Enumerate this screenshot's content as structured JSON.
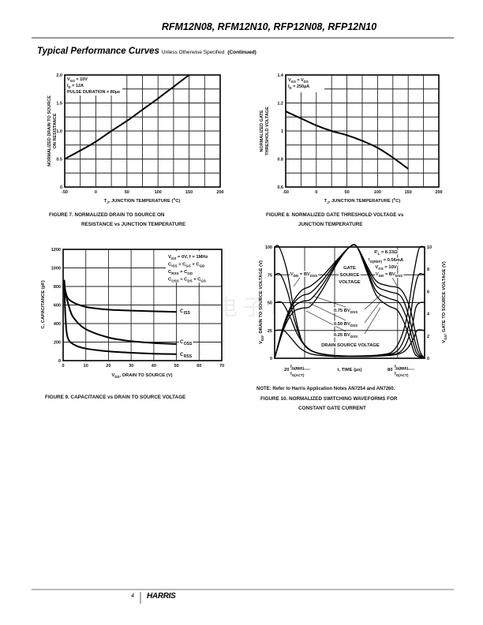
{
  "header": {
    "title": "RFM12N08, RFM12N10, RFP12N08, RFP12N10"
  },
  "section": {
    "title": "Typical Performance Curves",
    "subtitle": "Unless Otherwise Specified",
    "continued": "(Continued)"
  },
  "watermark": "维库电子市场网",
  "chart_data": [
    {
      "type": "line",
      "caption": [
        "FIGURE 7.  NORMALIZED DRAIN TO SOURCE ON",
        "RESISTANCE vs JUNCTION TEMPERATURE"
      ],
      "xlabel": [
        {
          "t": "T"
        },
        {
          "s": "J"
        },
        {
          "t": ", JUNCTION TEMPERATURE ("
        },
        {
          "u": "o"
        },
        {
          "t": "C)"
        }
      ],
      "ylabel": [
        "NORMALIZED DRAIN TO SOURCE",
        "ON RESISTANCE"
      ],
      "xlim": [
        -50,
        200
      ],
      "ylim": [
        0,
        2.0
      ],
      "x_grid": [
        -25,
        0,
        25,
        50,
        75,
        100,
        125,
        150,
        175
      ],
      "y_grid": [
        0.25,
        0.5,
        0.75,
        1.0,
        1.25,
        1.5,
        1.75
      ],
      "x_ticks": [
        -50,
        0,
        50,
        100,
        150,
        200
      ],
      "x_tick_labels": [
        "-50",
        "0",
        "50",
        "100",
        "150",
        "200"
      ],
      "y_ticks": [
        0,
        0.5,
        1.0,
        1.5,
        2.0
      ],
      "y_tick_labels": [
        "0",
        "0.5",
        "1.0",
        "1.5",
        "2.0"
      ],
      "annotations": [
        [
          {
            "t": "V"
          },
          {
            "s": "GS"
          },
          {
            "t": " = 10V"
          }
        ],
        [
          {
            "t": "I"
          },
          {
            "s": "D"
          },
          {
            "t": " = 12A"
          }
        ],
        [
          {
            "t": "PULSE DURATION = 80"
          },
          {
            "t": "µs"
          }
        ]
      ],
      "series": [
        {
          "name": "rDS(ON) normalized",
          "x": [
            -50,
            -25,
            0,
            25,
            50,
            75,
            100,
            125,
            150
          ],
          "y": [
            0.5,
            0.65,
            0.81,
            1.0,
            1.18,
            1.38,
            1.58,
            1.79,
            2.0
          ]
        }
      ]
    },
    {
      "type": "line",
      "caption": [
        "FIGURE 8.  NORMALIZED GATE THRESHOLD VOLTAGE vs",
        "JUNCTION TEMPERATURE"
      ],
      "xlabel": [
        {
          "t": "T"
        },
        {
          "s": "J"
        },
        {
          "t": ", JUNCTION TEMPERATURE ("
        },
        {
          "u": "o"
        },
        {
          "t": "C)"
        }
      ],
      "ylabel": [
        "NORMALIZED GATE",
        "THRESHOLD VOLTAGE"
      ],
      "xlim": [
        -50,
        200
      ],
      "ylim": [
        0.6,
        1.4
      ],
      "x_grid": [
        -25,
        0,
        25,
        50,
        75,
        100,
        125,
        150,
        175
      ],
      "y_grid": [
        0.7,
        0.8,
        0.9,
        1.0,
        1.1,
        1.2,
        1.3
      ],
      "x_ticks": [
        -50,
        0,
        50,
        100,
        150,
        200
      ],
      "x_tick_labels": [
        "-50",
        "0",
        "50",
        "100",
        "150",
        "200"
      ],
      "y_ticks": [
        0.6,
        0.8,
        1.0,
        1.2,
        1.4
      ],
      "y_tick_labels": [
        "0.6",
        "0.8",
        "1",
        "1.2",
        "1.4"
      ],
      "annotations": [
        [
          {
            "t": "V"
          },
          {
            "s": "GS"
          },
          {
            "t": " = V"
          },
          {
            "s": "DS"
          }
        ],
        [
          {
            "t": "I"
          },
          {
            "s": "D"
          },
          {
            "t": " = 250"
          },
          {
            "t": "µA"
          }
        ]
      ],
      "series": [
        {
          "name": "VGS(TH) normalized",
          "x": [
            -50,
            -25,
            0,
            25,
            50,
            75,
            100,
            125,
            150
          ],
          "y": [
            1.14,
            1.09,
            1.04,
            1.0,
            0.97,
            0.93,
            0.88,
            0.81,
            0.73
          ]
        }
      ]
    },
    {
      "type": "line",
      "caption": [
        "FIGURE 9.  CAPACITANCE vs DRAIN TO SOURCE VOLTAGE"
      ],
      "xlabel": [
        {
          "t": "V"
        },
        {
          "s": "DS"
        },
        {
          "t": ", DRAIN TO SOURCE (V)"
        }
      ],
      "ylabel": [
        "C, CAPACITANCE (pF)"
      ],
      "xlim": [
        0,
        70
      ],
      "ylim": [
        0,
        1200
      ],
      "x_grid": [
        10,
        20,
        30,
        40,
        50,
        60
      ],
      "y_grid": [
        200,
        400,
        600,
        800,
        1000
      ],
      "x_ticks": [
        0,
        10,
        20,
        30,
        40,
        50,
        60,
        70
      ],
      "x_tick_labels": [
        "0",
        "10",
        "20",
        "30",
        "40",
        "50",
        "60",
        "70"
      ],
      "y_ticks": [
        0,
        200,
        400,
        600,
        800,
        1000,
        1200
      ],
      "y_tick_labels": [
        "0",
        "200",
        "400",
        "600",
        "800",
        "1000",
        "1200"
      ],
      "annotations": [
        [
          {
            "t": "V"
          },
          {
            "s": "GS"
          },
          {
            "t": " = 0V, f = 1MHz"
          }
        ],
        [
          {
            "t": "C"
          },
          {
            "s": "ISS"
          },
          {
            "t": " = C"
          },
          {
            "s": "GS"
          },
          {
            "t": " + C"
          },
          {
            "s": "GD"
          }
        ],
        [
          {
            "t": "C"
          },
          {
            "s": "RSS"
          },
          {
            "t": " = C"
          },
          {
            "s": "GD"
          }
        ],
        [
          {
            "t": "C"
          },
          {
            "s": "OSS"
          },
          {
            "t": " ≈ C"
          },
          {
            "s": "DS"
          },
          {
            "t": " + C"
          },
          {
            "s": "GS"
          }
        ]
      ],
      "series": [
        {
          "name": "CISS",
          "label": [
            {
              "t": "C"
            },
            {
              "s": "ISS"
            }
          ],
          "x": [
            0.5,
            1,
            3,
            10,
            20,
            30,
            40,
            50
          ],
          "y": [
            870,
            750,
            650,
            580,
            550,
            540,
            532,
            525
          ]
        },
        {
          "name": "COSS",
          "label": [
            {
              "t": "C"
            },
            {
              "s": "OSS"
            }
          ],
          "x": [
            0.5,
            1,
            3,
            5,
            10,
            20,
            30,
            40,
            50
          ],
          "y": [
            870,
            740,
            550,
            450,
            340,
            250,
            210,
            190,
            180
          ]
        },
        {
          "name": "CRSS",
          "label": [
            {
              "t": "C"
            },
            {
              "s": "RSS"
            }
          ],
          "x": [
            0.5,
            1,
            2,
            5,
            10,
            20,
            30,
            40,
            50
          ],
          "y": [
            870,
            480,
            250,
            170,
            130,
            100,
            85,
            75,
            70
          ]
        }
      ]
    },
    {
      "type": "line",
      "caption": [
        "FIGURE 10.  NORMALIZED SWITCHING WAVEFORMS FOR",
        "CONSTANT GATE CURRENT"
      ],
      "note": "NOTE: Refer to Harris Application Notes AN7254 and AN7260.",
      "ylabel": [
        {
          "t": "V"
        },
        {
          "s": "DS"
        },
        {
          "t": ", DRAIN TO SOURCE VOLTAGE (V)"
        }
      ],
      "ylabel_right": [
        {
          "t": "V"
        },
        {
          "s": "GS"
        },
        {
          "t": ", GATE TO SOURCE VOLTAGE (V)"
        }
      ],
      "xlabel": {
        "left_value": "20",
        "left_num": [
          {
            "t": "I"
          },
          {
            "s": "G(REF)"
          }
        ],
        "left_den": [
          {
            "t": "I"
          },
          {
            "s": "G(ACT)"
          }
        ],
        "center": "t, TIME (µs)",
        "right_value": "80",
        "right_num": [
          {
            "t": "I"
          },
          {
            "s": "G(REF)"
          }
        ],
        "right_den": [
          {
            "t": "I"
          },
          {
            "s": "G(ACT)"
          }
        ]
      },
      "xlim": [
        0,
        100
      ],
      "ylim": [
        0,
        100
      ],
      "ylim_right": [
        0,
        10
      ],
      "x_grid": [
        20,
        40,
        82
      ],
      "y_grid": [
        25,
        50,
        75
      ],
      "y_ticks": [
        0,
        25,
        50,
        75,
        100
      ],
      "y_tick_labels": [
        "0",
        "25",
        "50",
        "75",
        "100"
      ],
      "y_ticks_right": [
        0,
        2,
        4,
        6,
        8,
        10
      ],
      "y_tick_labels_right": [
        "0",
        "2",
        "4",
        "6",
        "8",
        "10"
      ],
      "annotations": [
        [
          {
            "t": "R"
          },
          {
            "s": "L"
          },
          {
            "t": " = 8.33Ω"
          }
        ],
        [
          {
            "t": "I"
          },
          {
            "s": "G(REF)"
          },
          {
            "t": " = 0.56mA"
          }
        ],
        [
          {
            "t": "V"
          },
          {
            "s": "GS"
          },
          {
            "t": " = 10V"
          }
        ],
        [
          {
            "t": "V"
          },
          {
            "s": "DD"
          },
          {
            "t": " = BV"
          },
          {
            "s": "DSS"
          }
        ],
        [
          {
            "t": "V"
          },
          {
            "s": "DD"
          },
          {
            "t": " = BV"
          },
          {
            "s": "DSS"
          }
        ],
        [
          {
            "t": "GATE"
          }
        ],
        [
          {
            "t": "SOURCE"
          }
        ],
        [
          {
            "t": "VOLTAGE"
          }
        ],
        [
          {
            "t": "0.75 BV"
          },
          {
            "s": "DSS"
          }
        ],
        [
          {
            "t": "0.50 BV"
          },
          {
            "s": "DSS"
          }
        ],
        [
          {
            "t": "0.25 BV"
          },
          {
            "s": "DSS"
          }
        ],
        [
          {
            "t": "DRAIN SOURCE VOLTAGE"
          }
        ]
      ],
      "series": [
        {
          "name": "VDS at VDD = BVDSS",
          "axis": "left",
          "x": [
            0,
            3,
            8,
            12,
            16,
            20,
            30,
            50,
            70,
            80,
            87,
            92,
            95,
            97,
            100
          ],
          "y": [
            100,
            100,
            80,
            50,
            25,
            12,
            4,
            2,
            3,
            8,
            30,
            70,
            92,
            100,
            100
          ]
        },
        {
          "name": "VDS at 0.75 BVDSS",
          "axis": "left",
          "x": [
            0,
            4,
            9,
            13,
            18,
            24,
            35,
            50,
            70,
            82,
            89,
            93,
            96,
            100
          ],
          "y": [
            75,
            75,
            58,
            35,
            16,
            7,
            3,
            2,
            3,
            7,
            28,
            60,
            75,
            75
          ]
        },
        {
          "name": "VDS at 0.50 BVDSS",
          "axis": "left",
          "x": [
            0,
            5,
            10,
            15,
            21,
            28,
            40,
            50,
            70,
            84,
            91,
            94,
            97,
            100
          ],
          "y": [
            50,
            50,
            38,
            22,
            10,
            5,
            2.5,
            2,
            2.5,
            6,
            25,
            45,
            50,
            50
          ]
        },
        {
          "name": "VDS at 0.25 BVDSS",
          "axis": "left",
          "x": [
            0,
            6,
            11,
            17,
            24,
            35,
            50,
            70,
            85,
            92,
            95,
            100
          ],
          "y": [
            25,
            25,
            18,
            9,
            4,
            2,
            1.5,
            2,
            5,
            16,
            25,
            25
          ]
        },
        {
          "name": "VGS at VDD = BVDSS",
          "axis": "right",
          "x": [
            0,
            6,
            12,
            18,
            24,
            32,
            42,
            50,
            55,
            62,
            68,
            76,
            84,
            90,
            94,
            97,
            100
          ],
          "y": [
            0,
            3,
            5,
            6.1,
            6.5,
            7.4,
            8.9,
            10,
            10,
            8.2,
            6.9,
            6.5,
            6.2,
            4.6,
            2.2,
            0.6,
            0
          ]
        },
        {
          "name": "VGS at 0.75 BVDSS",
          "axis": "right",
          "x": [
            0,
            6,
            12,
            18,
            24,
            32,
            42,
            50,
            55,
            62,
            68,
            76,
            84,
            89,
            93,
            96,
            100
          ],
          "y": [
            0,
            2.9,
            4.8,
            5.6,
            5.9,
            7.0,
            8.8,
            10,
            10,
            8.0,
            6.5,
            6.0,
            5.6,
            4.0,
            1.8,
            0.5,
            0
          ]
        },
        {
          "name": "VGS at 0.50 BVDSS",
          "axis": "right",
          "x": [
            0,
            6,
            12,
            18,
            24,
            32,
            42,
            50,
            55,
            62,
            68,
            76,
            83,
            88,
            92,
            95,
            100
          ],
          "y": [
            0,
            2.8,
            4.5,
            5.1,
            5.3,
            6.6,
            8.7,
            10,
            10,
            7.8,
            6.0,
            5.4,
            5.0,
            3.6,
            1.6,
            0.4,
            0
          ]
        },
        {
          "name": "VGS at 0.25 BVDSS",
          "axis": "right",
          "x": [
            0,
            6,
            12,
            18,
            24,
            32,
            42,
            50,
            55,
            62,
            68,
            76,
            82,
            87,
            91,
            94,
            100
          ],
          "y": [
            0,
            2.6,
            4.1,
            4.5,
            4.7,
            6.2,
            8.6,
            10,
            10,
            7.6,
            5.6,
            4.7,
            4.3,
            3.0,
            1.4,
            0.3,
            0
          ]
        }
      ]
    }
  ],
  "footer": {
    "page": "4",
    "logo": "HARRIS"
  }
}
